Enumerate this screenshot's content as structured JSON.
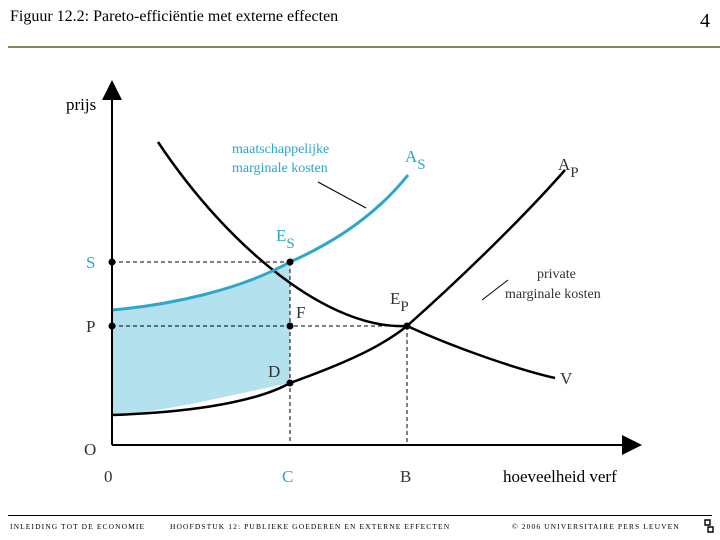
{
  "header": {
    "title": "Figuur 12.2: Pareto-efficiëntie met externe effecten",
    "page": "4"
  },
  "diagram": {
    "y_axis_label": "prijs",
    "x_axis_label": "hoeveelheid verf",
    "origin_label": "O",
    "zero_label": "0",
    "tick_labels": {
      "S": "S",
      "P": "P",
      "C": "C",
      "B": "B"
    },
    "point_labels": {
      "F": "F",
      "D": "D"
    },
    "E_S": {
      "main": "E",
      "sub": "S"
    },
    "E_P": {
      "main": "E",
      "sub": "P"
    },
    "A_S": {
      "main": "A",
      "sub": "S"
    },
    "A_P": {
      "main": "A",
      "sub": "P"
    },
    "V": "V",
    "social_cost_label": [
      "maatschappelijke",
      "marginale kosten"
    ],
    "private_cost_label": [
      "private",
      "marginale kosten"
    ],
    "colors": {
      "social_curve": "#2aa7c9",
      "shaded_area": "#b3e1ee",
      "axis": "#000000"
    }
  },
  "footer": {
    "left": "INLEIDING TOT DE ECONOMIE",
    "middle": "HOOFDSTUK 12: PUBLIEKE GOEDEREN EN EXTERNE EFFECTEN",
    "right": "© 2006 UNIVERSITAIRE PERS LEUVEN"
  }
}
